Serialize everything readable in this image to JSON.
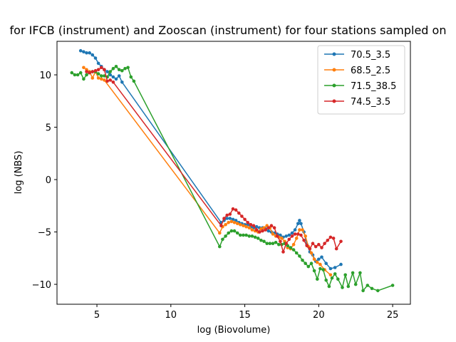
{
  "chart_data": {
    "type": "line",
    "title": "for IFCB (instrument) and Zooscan (instrument) for four stations sampled on",
    "xlabel": "log (Biovolume)",
    "ylabel": "log (NBS)",
    "xlim": [
      2.3,
      26.2
    ],
    "ylim": [
      -11.9,
      13.2
    ],
    "xticks": [
      5,
      10,
      15,
      20,
      25
    ],
    "yticks": [
      -10,
      -5,
      0,
      5,
      10
    ],
    "grid": false,
    "legend_position": "upper-right",
    "series": [
      {
        "name": "70.5_3.5",
        "color": "#1f77b4",
        "points": [
          [
            3.9,
            12.3
          ],
          [
            4.1,
            12.2
          ],
          [
            4.3,
            12.1
          ],
          [
            4.5,
            12.1
          ],
          [
            4.7,
            11.9
          ],
          [
            4.9,
            11.6
          ],
          [
            5.1,
            11.1
          ],
          [
            5.3,
            10.8
          ],
          [
            5.5,
            10.5
          ],
          [
            5.7,
            10.3
          ],
          [
            5.9,
            10.0
          ],
          [
            6.1,
            9.8
          ],
          [
            6.3,
            9.6
          ],
          [
            6.5,
            9.9
          ],
          [
            6.7,
            9.3
          ],
          [
            13.4,
            -4.1
          ],
          [
            13.6,
            -3.9
          ],
          [
            13.8,
            -3.7
          ],
          [
            14.0,
            -3.7
          ],
          [
            14.2,
            -3.8
          ],
          [
            14.4,
            -3.9
          ],
          [
            14.6,
            -4.1
          ],
          [
            14.8,
            -4.2
          ],
          [
            15.0,
            -4.3
          ],
          [
            15.2,
            -4.3
          ],
          [
            15.4,
            -4.5
          ],
          [
            15.6,
            -4.6
          ],
          [
            15.8,
            -4.5
          ],
          [
            16.0,
            -4.6
          ],
          [
            16.2,
            -4.6
          ],
          [
            16.4,
            -4.7
          ],
          [
            16.6,
            -4.9
          ],
          [
            16.8,
            -5.0
          ],
          [
            17.0,
            -5.1
          ],
          [
            17.2,
            -5.2
          ],
          [
            17.4,
            -5.3
          ],
          [
            17.6,
            -5.5
          ],
          [
            17.8,
            -5.4
          ],
          [
            18.0,
            -5.3
          ],
          [
            18.2,
            -5.1
          ],
          [
            18.4,
            -4.8
          ],
          [
            18.6,
            -4.2
          ],
          [
            18.7,
            -3.9
          ],
          [
            18.8,
            -4.2
          ],
          [
            19.0,
            -5.0
          ],
          [
            19.2,
            -6.2
          ],
          [
            19.4,
            -6.9
          ],
          [
            19.6,
            -7.2
          ],
          [
            19.8,
            -7.8
          ],
          [
            20.0,
            -7.6
          ],
          [
            20.2,
            -7.4
          ],
          [
            20.5,
            -8.0
          ],
          [
            20.8,
            -8.5
          ],
          [
            21.1,
            -8.4
          ],
          [
            21.5,
            -8.1
          ]
        ]
      },
      {
        "name": "68.5_2.5",
        "color": "#ff7f0e",
        "points": [
          [
            4.1,
            10.7
          ],
          [
            4.3,
            10.5
          ],
          [
            4.5,
            10.3
          ],
          [
            4.7,
            9.7
          ],
          [
            4.9,
            10.3
          ],
          [
            5.1,
            9.7
          ],
          [
            5.3,
            9.6
          ],
          [
            5.5,
            9.5
          ],
          [
            13.3,
            -5.1
          ],
          [
            13.5,
            -4.5
          ],
          [
            13.7,
            -4.3
          ],
          [
            13.9,
            -4.1
          ],
          [
            14.1,
            -4.0
          ],
          [
            14.3,
            -4.1
          ],
          [
            14.5,
            -4.2
          ],
          [
            14.7,
            -4.3
          ],
          [
            14.9,
            -4.4
          ],
          [
            15.1,
            -4.5
          ],
          [
            15.3,
            -4.6
          ],
          [
            15.5,
            -4.8
          ],
          [
            15.7,
            -4.9
          ],
          [
            15.9,
            -5.0
          ],
          [
            16.1,
            -4.7
          ],
          [
            16.3,
            -4.6
          ],
          [
            16.5,
            -4.4
          ],
          [
            16.7,
            -4.6
          ],
          [
            16.9,
            -5.2
          ],
          [
            17.1,
            -5.4
          ],
          [
            17.3,
            -5.5
          ],
          [
            17.5,
            -5.6
          ],
          [
            17.7,
            -5.9
          ],
          [
            17.9,
            -6.5
          ],
          [
            18.1,
            -6.6
          ],
          [
            18.3,
            -6.2
          ],
          [
            18.5,
            -5.6
          ],
          [
            18.7,
            -4.8
          ],
          [
            18.9,
            -4.8
          ],
          [
            19.1,
            -5.4
          ],
          [
            19.3,
            -6.4
          ],
          [
            19.5,
            -7.0
          ],
          [
            19.7,
            -7.6
          ],
          [
            19.9,
            -7.9
          ],
          [
            20.1,
            -8.1
          ],
          [
            20.4,
            -8.6
          ],
          [
            20.8,
            -9.1
          ]
        ]
      },
      {
        "name": "71.5_38.5",
        "color": "#2ca02c",
        "points": [
          [
            3.3,
            10.2
          ],
          [
            3.5,
            10.0
          ],
          [
            3.7,
            10.0
          ],
          [
            3.9,
            10.2
          ],
          [
            4.1,
            9.6
          ],
          [
            4.3,
            10.0
          ],
          [
            4.5,
            10.2
          ],
          [
            4.7,
            10.3
          ],
          [
            4.9,
            10.3
          ],
          [
            5.1,
            10.1
          ],
          [
            5.3,
            9.9
          ],
          [
            5.5,
            9.9
          ],
          [
            5.7,
            9.8
          ],
          [
            5.9,
            10.3
          ],
          [
            6.1,
            10.6
          ],
          [
            6.3,
            10.8
          ],
          [
            6.5,
            10.5
          ],
          [
            6.7,
            10.4
          ],
          [
            6.9,
            10.6
          ],
          [
            7.1,
            10.7
          ],
          [
            7.3,
            9.8
          ],
          [
            7.5,
            9.4
          ],
          [
            13.3,
            -6.4
          ],
          [
            13.5,
            -5.7
          ],
          [
            13.7,
            -5.4
          ],
          [
            13.9,
            -5.1
          ],
          [
            14.1,
            -4.9
          ],
          [
            14.3,
            -4.9
          ],
          [
            14.5,
            -5.1
          ],
          [
            14.7,
            -5.3
          ],
          [
            14.9,
            -5.3
          ],
          [
            15.1,
            -5.3
          ],
          [
            15.3,
            -5.4
          ],
          [
            15.5,
            -5.4
          ],
          [
            15.7,
            -5.5
          ],
          [
            15.9,
            -5.6
          ],
          [
            16.1,
            -5.8
          ],
          [
            16.3,
            -5.9
          ],
          [
            16.5,
            -6.1
          ],
          [
            16.7,
            -6.1
          ],
          [
            16.9,
            -6.1
          ],
          [
            17.1,
            -6.0
          ],
          [
            17.3,
            -6.2
          ],
          [
            17.5,
            -6.2
          ],
          [
            17.7,
            -6.1
          ],
          [
            17.9,
            -6.3
          ],
          [
            18.1,
            -6.5
          ],
          [
            18.3,
            -6.7
          ],
          [
            18.5,
            -7.0
          ],
          [
            18.7,
            -7.3
          ],
          [
            18.9,
            -7.7
          ],
          [
            19.1,
            -8.0
          ],
          [
            19.3,
            -8.3
          ],
          [
            19.5,
            -8.0
          ],
          [
            19.7,
            -8.7
          ],
          [
            19.9,
            -9.5
          ],
          [
            20.1,
            -8.5
          ],
          [
            20.3,
            -8.6
          ],
          [
            20.5,
            -9.6
          ],
          [
            20.7,
            -10.2
          ],
          [
            20.9,
            -9.4
          ],
          [
            21.1,
            -9.0
          ],
          [
            21.3,
            -9.5
          ],
          [
            21.6,
            -10.3
          ],
          [
            21.8,
            -9.1
          ],
          [
            22.0,
            -10.2
          ],
          [
            22.3,
            -8.9
          ],
          [
            22.5,
            -10.0
          ],
          [
            22.8,
            -8.9
          ],
          [
            23.0,
            -10.6
          ],
          [
            23.3,
            -10.1
          ],
          [
            23.6,
            -10.4
          ],
          [
            24.0,
            -10.6
          ],
          [
            25.0,
            -10.1
          ]
        ]
      },
      {
        "name": "74.5_3.5",
        "color": "#d62728",
        "points": [
          [
            4.3,
            10.3
          ],
          [
            4.5,
            10.2
          ],
          [
            4.7,
            10.3
          ],
          [
            4.9,
            10.4
          ],
          [
            5.1,
            10.5
          ],
          [
            5.3,
            10.7
          ],
          [
            5.5,
            10.5
          ],
          [
            5.7,
            9.4
          ],
          [
            5.9,
            9.5
          ],
          [
            6.1,
            9.3
          ],
          [
            13.4,
            -4.4
          ],
          [
            13.6,
            -3.7
          ],
          [
            13.8,
            -3.4
          ],
          [
            14.0,
            -3.3
          ],
          [
            14.2,
            -2.8
          ],
          [
            14.4,
            -2.9
          ],
          [
            14.6,
            -3.2
          ],
          [
            14.8,
            -3.5
          ],
          [
            15.0,
            -3.8
          ],
          [
            15.2,
            -4.1
          ],
          [
            15.4,
            -4.3
          ],
          [
            15.6,
            -4.4
          ],
          [
            15.8,
            -4.8
          ],
          [
            16.0,
            -5.0
          ],
          [
            16.2,
            -4.9
          ],
          [
            16.4,
            -4.8
          ],
          [
            16.6,
            -4.6
          ],
          [
            16.8,
            -4.4
          ],
          [
            17.0,
            -4.6
          ],
          [
            17.2,
            -5.4
          ],
          [
            17.4,
            -5.9
          ],
          [
            17.6,
            -6.9
          ],
          [
            17.8,
            -6.1
          ],
          [
            18.0,
            -5.7
          ],
          [
            18.2,
            -5.4
          ],
          [
            18.4,
            -5.2
          ],
          [
            18.6,
            -5.2
          ],
          [
            18.8,
            -5.3
          ],
          [
            19.0,
            -5.8
          ],
          [
            19.2,
            -6.3
          ],
          [
            19.4,
            -6.6
          ],
          [
            19.6,
            -6.1
          ],
          [
            19.8,
            -6.4
          ],
          [
            20.0,
            -6.2
          ],
          [
            20.2,
            -6.5
          ],
          [
            20.4,
            -6.1
          ],
          [
            20.6,
            -5.8
          ],
          [
            20.8,
            -5.5
          ],
          [
            21.0,
            -5.6
          ],
          [
            21.2,
            -6.6
          ],
          [
            21.5,
            -5.9
          ]
        ]
      }
    ]
  }
}
